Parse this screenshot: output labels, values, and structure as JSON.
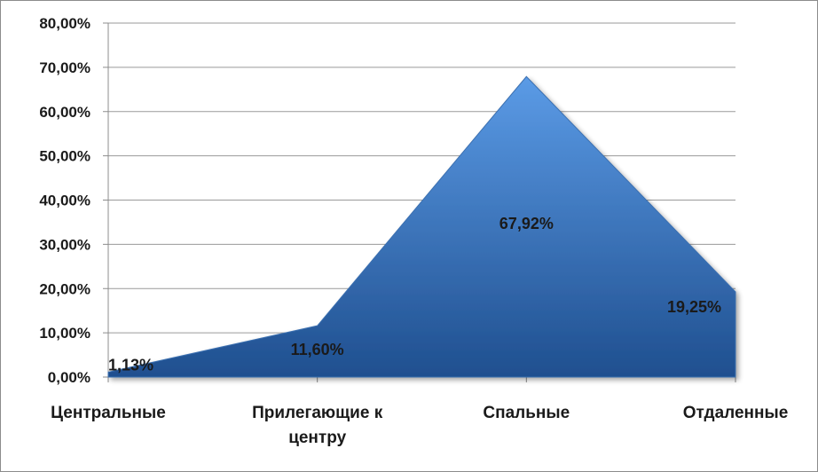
{
  "chart_data": {
    "type": "area",
    "categories": [
      [
        "Центральные"
      ],
      [
        "Прилегающие к",
        "центру"
      ],
      [
        "Спальные"
      ],
      [
        "Отдаленные"
      ]
    ],
    "values": [
      1.13,
      11.6,
      67.92,
      19.25
    ],
    "data_labels": [
      "1,13%",
      "11,60%",
      "67,92%",
      "19,25%"
    ],
    "y_ticks": [
      "0,00%",
      "10,00%",
      "20,00%",
      "30,00%",
      "40,00%",
      "50,00%",
      "60,00%",
      "70,00%",
      "80,00%"
    ],
    "ylim": [
      0,
      80
    ],
    "grid": true,
    "legend": "none",
    "colors": {
      "fill_light": "#5b9be6",
      "fill_dark": "#1f4f8f",
      "grid": "#9a9a9a",
      "axis": "#8c8c8c"
    }
  }
}
